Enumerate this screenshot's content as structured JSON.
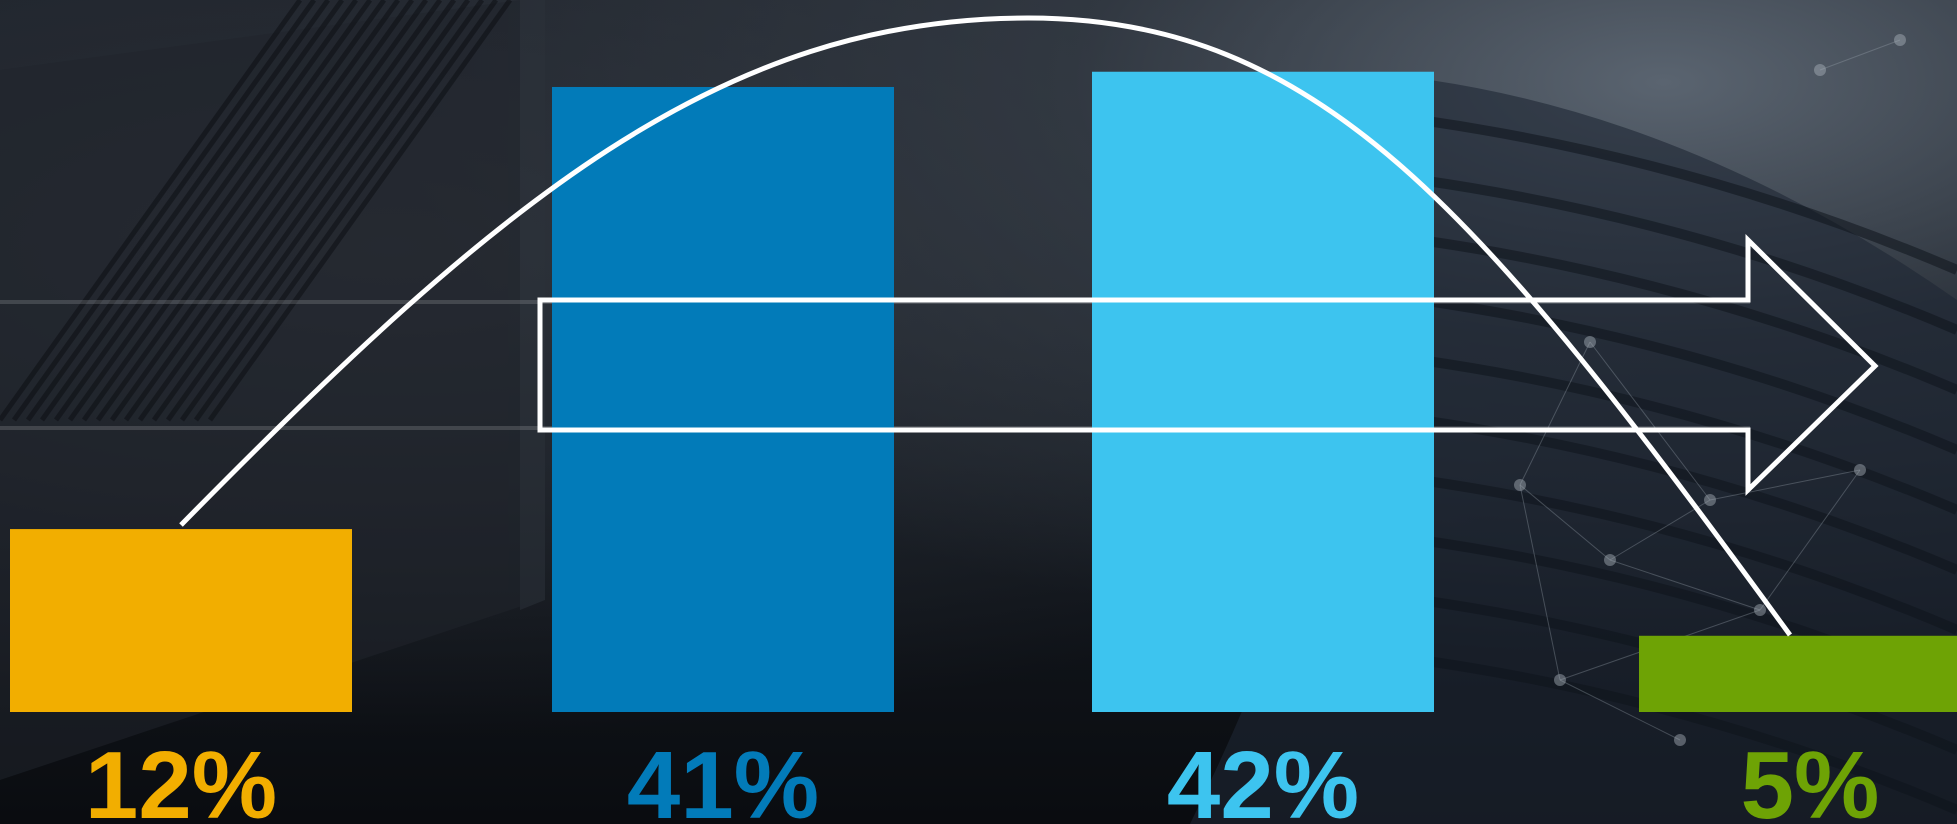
{
  "chart_data": {
    "type": "bar",
    "categories": [
      "",
      "",
      "",
      ""
    ],
    "values": [
      12,
      41,
      42,
      5
    ],
    "labels": [
      "12%",
      "41%",
      "42%",
      "5%"
    ],
    "colors": [
      "#f2ae00",
      "#027bb9",
      "#3dc4ef",
      "#6ea305"
    ],
    "ylim": [
      0,
      45
    ],
    "legend": "none",
    "grid": false
  },
  "decor": {
    "curve_color": "#ffffff",
    "arrow_color": "#ffffff",
    "background_color": "#151a21"
  }
}
